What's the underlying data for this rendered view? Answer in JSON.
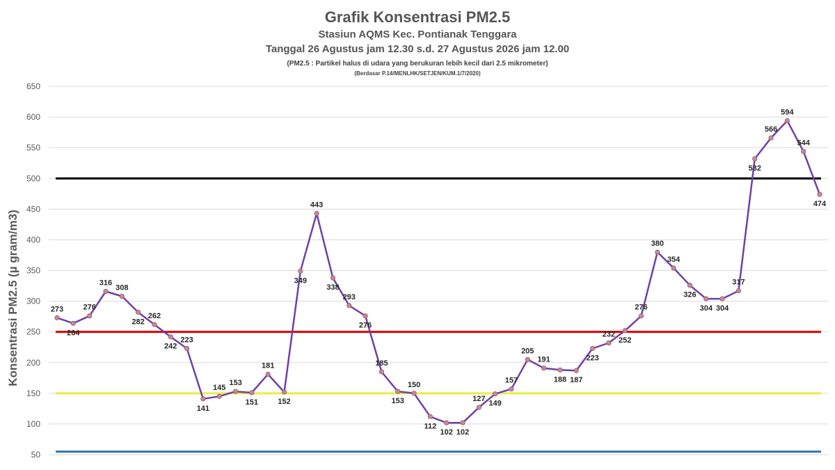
{
  "chart_data": {
    "type": "line",
    "title": "Grafik Konsentrasi PM2.5",
    "subtitle": "Stasiun AQMS Kec. Pontianak Tenggara",
    "period": "Tanggal 26 Agustus jam 12.30 s.d. 27 Agustus 2026 jam 12.00",
    "note": "(PM2.5 : Partikel halus di udara yang berukuran lebih kecil dari 2.5 mikrometer)",
    "reference": "(Berdasar P.14/MENLHK/SETJEN/KUM.1/7/2020)",
    "ylabel": "Konsentrasi PM2.5 (µ gram/m3)",
    "xlabel": "",
    "ylim": [
      50,
      650
    ],
    "yticks": [
      50,
      100,
      150,
      200,
      250,
      300,
      350,
      400,
      450,
      500,
      550,
      600,
      650
    ],
    "grid": true,
    "values": [
      273,
      264,
      276,
      316,
      308,
      282,
      262,
      242,
      223,
      141,
      145,
      153,
      151,
      181,
      152,
      349,
      443,
      338,
      293,
      276,
      185,
      153,
      150,
      112,
      102,
      102,
      127,
      149,
      157,
      205,
      191,
      188,
      187,
      223,
      232,
      252,
      276,
      380,
      354,
      326,
      304,
      304,
      317,
      532,
      566,
      594,
      544,
      474
    ],
    "data_labels": [
      "273",
      "264",
      "276",
      "316",
      "308",
      "282",
      "262",
      "242",
      "223",
      "141",
      "145",
      "153",
      "151",
      "181",
      "152",
      "349",
      "443",
      "338",
      "293",
      "276",
      "185",
      "153",
      "150",
      "112",
      "102",
      "102",
      "127",
      "149",
      "157",
      "205",
      "191",
      "188",
      "187",
      "223",
      "232",
      "252",
      "276",
      "380",
      "354",
      "326",
      "304",
      "304",
      "317",
      "532",
      "566",
      "594",
      "544",
      "474"
    ],
    "series_color": "#6f3fa8",
    "marker_color": "#c98a8f",
    "thresholds": [
      {
        "value": 500,
        "color": "#000000"
      },
      {
        "value": 250,
        "color": "#e00000"
      },
      {
        "value": 150,
        "color": "#ecec40"
      },
      {
        "value": 55,
        "color": "#2e75b6"
      }
    ]
  }
}
